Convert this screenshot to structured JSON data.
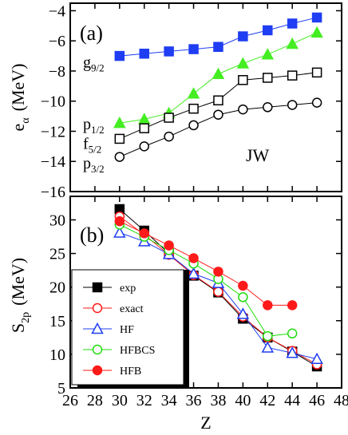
{
  "chart_data": [
    {
      "type": "line",
      "panel_label": "(a)",
      "annotation": "JW",
      "ylabel": "e",
      "ylabel_sub": "α",
      "ylabel_unit": "(MeV)",
      "xlim": [
        26,
        48
      ],
      "ylim": [
        -16,
        -3.5
      ],
      "yticks": [
        -16,
        -14,
        -12,
        -10,
        -8,
        -6,
        -4
      ],
      "grid": false,
      "level_labels": [
        {
          "base": "g",
          "sub": "9/2",
          "y": -7.45
        },
        {
          "base": "p",
          "sub": "1/2",
          "y": -11.55
        },
        {
          "base": "f",
          "sub": "5/2",
          "y": -12.85
        },
        {
          "base": "p",
          "sub": "3/2",
          "y": -14.15
        }
      ],
      "series": [
        {
          "color": "#1f3df2",
          "marker": "square-filled",
          "x": [
            30,
            32,
            34,
            36,
            38,
            40,
            42,
            44,
            46
          ],
          "y": [
            -7.0,
            -6.85,
            -6.7,
            -6.55,
            -6.4,
            -5.7,
            -5.3,
            -4.85,
            -4.45
          ]
        },
        {
          "color": "#44ee22",
          "marker": "triangle-filled",
          "x": [
            30,
            32,
            34,
            36,
            38,
            40,
            42,
            44,
            46
          ],
          "y": [
            -11.45,
            -11.2,
            -10.8,
            -9.5,
            -8.2,
            -7.5,
            -6.9,
            -6.2,
            -5.45
          ]
        },
        {
          "color": "#000000",
          "marker": "square-open",
          "x": [
            30,
            32,
            34,
            36,
            38,
            40,
            42,
            44,
            46
          ],
          "y": [
            -12.5,
            -11.8,
            -11.1,
            -10.5,
            -9.95,
            -8.6,
            -8.45,
            -8.3,
            -8.1
          ]
        },
        {
          "color": "#000000",
          "marker": "circle-open",
          "x": [
            30,
            32,
            34,
            36,
            38,
            40,
            42,
            44,
            46
          ],
          "y": [
            -13.7,
            -13.0,
            -12.35,
            -11.6,
            -10.9,
            -10.55,
            -10.4,
            -10.25,
            -10.1
          ]
        }
      ]
    },
    {
      "type": "line",
      "panel_label": "(b)",
      "xlabel": "Z",
      "ylabel": "S",
      "ylabel_sub": "2p",
      "ylabel_unit": "(MeV)",
      "xlim": [
        26,
        48
      ],
      "ylim": [
        5,
        33.5
      ],
      "xticks": [
        26,
        28,
        30,
        32,
        34,
        36,
        38,
        40,
        42,
        44,
        46,
        48
      ],
      "yticks": [
        5,
        10,
        15,
        20,
        25,
        30
      ],
      "grid": false,
      "legend_position": "left",
      "series": [
        {
          "name": "exp",
          "color": "#000000",
          "marker": "square-filled",
          "x": [
            30,
            32,
            34,
            36,
            38,
            40,
            42,
            44,
            46
          ],
          "y": [
            31.6,
            28.4,
            25.0,
            21.7,
            19.2,
            15.3,
            12.5,
            10.4,
            8.2
          ]
        },
        {
          "name": "exact",
          "color": "#ff1a1a",
          "marker": "circle-open",
          "x": [
            30,
            32,
            34,
            36,
            38,
            40,
            42,
            44,
            46
          ],
          "y": [
            30.5,
            27.8,
            24.8,
            21.8,
            19.3,
            15.6,
            12.5,
            10.5,
            8.5
          ]
        },
        {
          "name": "HF",
          "color": "#1f3df2",
          "marker": "triangle-open",
          "x": [
            30,
            32,
            34,
            36,
            38,
            40,
            42,
            44,
            46
          ],
          "y": [
            28.1,
            26.8,
            24.9,
            22.0,
            20.6,
            16.0,
            11.0,
            10.2,
            9.3
          ]
        },
        {
          "name": "HFBCS",
          "color": "#22dd11",
          "marker": "circle-open",
          "x": [
            30,
            32,
            34,
            36,
            38,
            40,
            42,
            44
          ],
          "y": [
            29.3,
            27.5,
            25.5,
            23.5,
            21.2,
            18.5,
            12.7,
            13.1
          ]
        },
        {
          "name": "HFB",
          "color": "#ff1a1a",
          "marker": "circle-filled",
          "x": [
            30,
            32,
            34,
            36,
            38,
            40,
            42,
            44
          ],
          "y": [
            29.8,
            28.0,
            26.2,
            24.3,
            22.3,
            20.2,
            17.3,
            17.3
          ]
        }
      ]
    }
  ]
}
